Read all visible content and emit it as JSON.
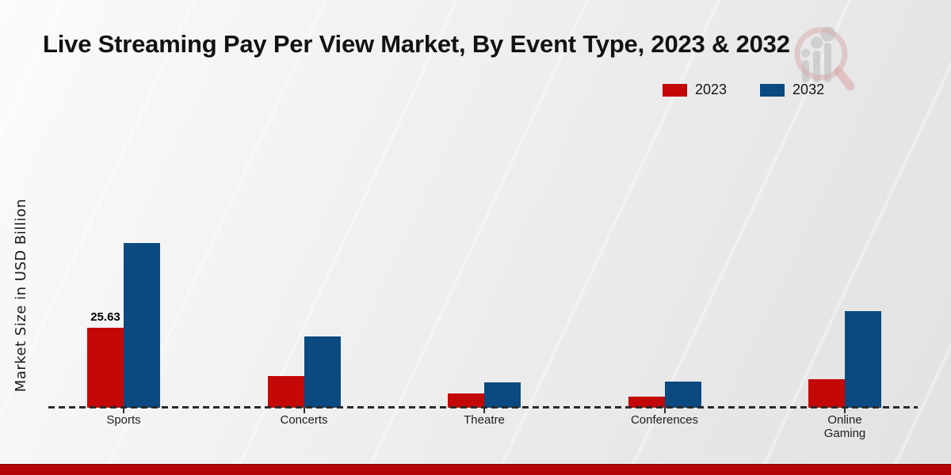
{
  "title": "Live Streaming Pay Per View Market, By Event Type, 2023 & 2032",
  "ylabel": "Market Size in USD Billion",
  "legend": [
    {
      "label": "2023",
      "color": "#c40808"
    },
    {
      "label": "2032",
      "color": "#0a4a80"
    }
  ],
  "colors": {
    "bar_2023": "#c40808",
    "bar_2032": "#0a4a80",
    "axis_line": "#2b2b2b",
    "footer_band": "#b30505",
    "text": "#141414"
  },
  "logo": {
    "name": "magnifier-bar-chart-watermark"
  },
  "chart_data": {
    "type": "bar",
    "categories": [
      "Sports",
      "Concerts",
      "Theatre",
      "Conferences",
      "Online Gaming"
    ],
    "series": [
      {
        "name": "2023",
        "color": "#c40808",
        "values": [
          25.63,
          10.2,
          4.6,
          3.6,
          9.1
        ]
      },
      {
        "name": "2032",
        "color": "#0a4a80",
        "values": [
          52.8,
          22.8,
          8.1,
          8.4,
          31.0
        ]
      }
    ],
    "title": "Live Streaming Pay Per View Market, By Event Type, 2023 & 2032",
    "xlabel": "",
    "ylabel": "Market Size in USD Billion",
    "ylim": [
      0,
      55
    ],
    "grid": false,
    "legend_position": "top-right",
    "baseline_style": "dashed",
    "annotations": [
      {
        "series": "2023",
        "category": "Sports",
        "text": "25.63"
      }
    ]
  }
}
